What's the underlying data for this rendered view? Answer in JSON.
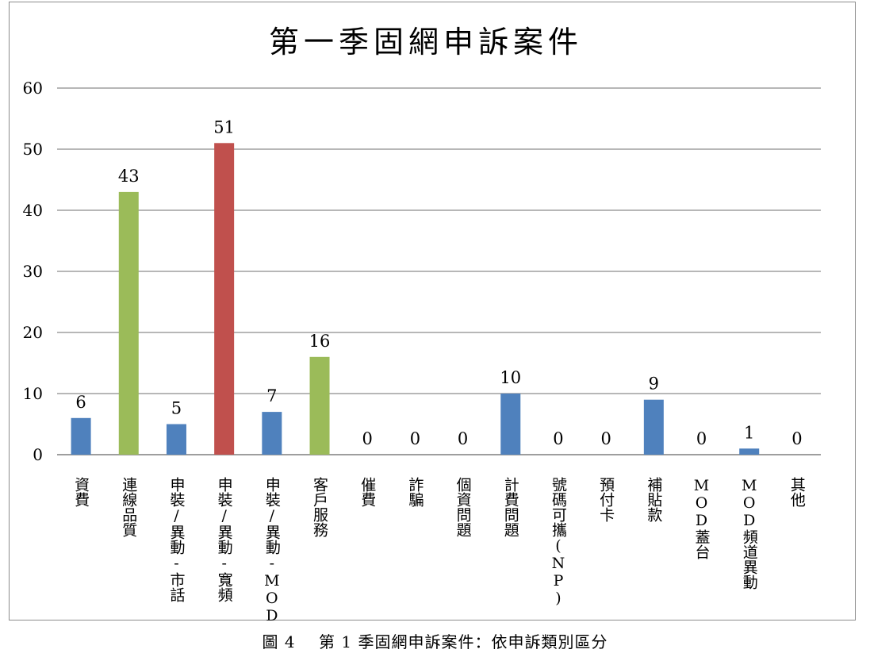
{
  "chart_data": {
    "type": "bar",
    "title": "第一季固網申訴案件",
    "categories": [
      "資費",
      "連線品質",
      "申裝/異動-市話",
      "申裝/異動-寬頻",
      "申裝/異動-MOD",
      "客戶服務",
      "催費",
      "詐騙",
      "個資問題",
      "計費問題",
      "號碼可攜(NP)",
      "預付卡",
      "補貼款",
      "MOD蓋台",
      "MOD頻道異動",
      "其他"
    ],
    "values": [
      6,
      43,
      5,
      51,
      7,
      16,
      0,
      0,
      0,
      10,
      0,
      0,
      9,
      0,
      1,
      0
    ],
    "bar_colors": [
      "#4f81bd",
      "#9bbb59",
      "#4f81bd",
      "#c0504d",
      "#4f81bd",
      "#9bbb59",
      "#4f81bd",
      "#4f81bd",
      "#4f81bd",
      "#4f81bd",
      "#4f81bd",
      "#4f81bd",
      "#4f81bd",
      "#4f81bd",
      "#4f81bd",
      "#4f81bd"
    ],
    "ylim": [
      0,
      60
    ],
    "yticks": [
      0,
      10,
      20,
      30,
      40,
      50,
      60
    ],
    "grid": true,
    "legend": "none",
    "xlabel": "",
    "ylabel": ""
  },
  "caption": "圖 4    第 1 季固網申訴案件：依申訴類別區分"
}
